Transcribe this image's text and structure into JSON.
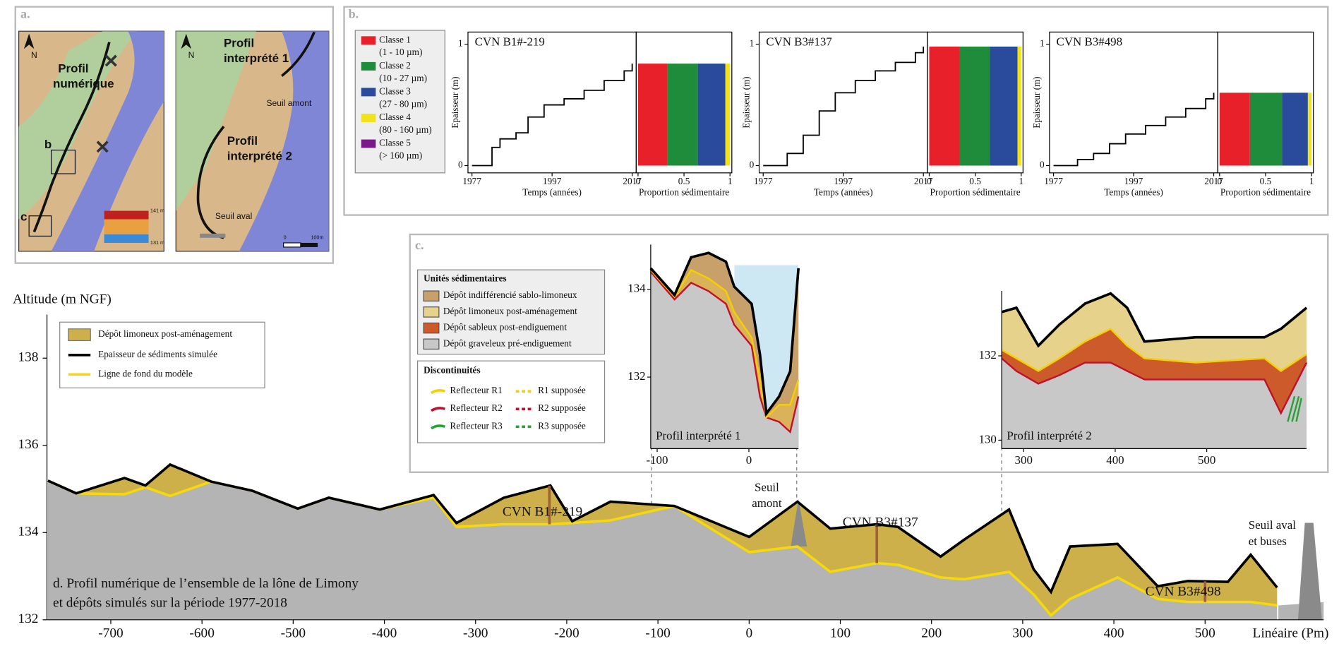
{
  "panel_a": {
    "label": "a.",
    "north": "N",
    "north_2": "N",
    "map1_title": [
      "Profil",
      "numérique"
    ],
    "inset_b": "b",
    "inset_c": "c",
    "elev_max": "141 m",
    "elev_min": "131 m",
    "profil1": [
      "Profil",
      "interprété 1"
    ],
    "profil2": [
      "Profil",
      "interprété 2"
    ],
    "seuil_amont": "Seuil amont",
    "seuil_aval": "Seuil aval",
    "scale_0": "0",
    "scale_1": "100m"
  },
  "panel_b": {
    "label": "b.",
    "legend": [
      {
        "name": "Classe 1",
        "range": "(1 - 10 µm)",
        "color": "#e8202a"
      },
      {
        "name": "Classe 2",
        "range": "(10 - 27 µm)",
        "color": "#1e8c3a"
      },
      {
        "name": "Classe 3",
        "range": "(27 - 80 µm)",
        "color": "#2a4a9c"
      },
      {
        "name": "Classe 4",
        "range": "(80 - 160 µm)",
        "color": "#f2e21a"
      },
      {
        "name": "Classe 5",
        "range": "(> 160 µm)",
        "color": "#7a1a8a"
      }
    ]
  },
  "panel_c": {
    "label": "c.",
    "units_title": "Unités sédimentaires",
    "units": [
      {
        "name": "Dépôt indifférencié sablo-limoneux",
        "color": "#c8a06a"
      },
      {
        "name": "Dépôt limoneux post-aménagement",
        "color": "#e6d28a"
      },
      {
        "name": "Dépôt sableux post-endiguement",
        "color": "#cc5a2a"
      },
      {
        "name": "Dépôt graveleux pré-endiguement",
        "color": "#c8c8c8"
      }
    ],
    "disc_title": "Discontinuités",
    "disc": [
      {
        "name": "Reflecteur R1",
        "supposed": "R1 supposée",
        "color": "#f5d000"
      },
      {
        "name": "Reflecteur R2",
        "supposed": "R2 supposée",
        "color": "#c0102a"
      },
      {
        "name": "Reflecteur R3",
        "supposed": "R3 supposée",
        "color": "#2aa03a"
      }
    ]
  },
  "chart_data": [
    {
      "type": "area",
      "x_label": "Linéaire (Pm)",
      "y_label": "Altitude (m NGF)",
      "caption": [
        "d. Profil numérique de l’ensemble de la lône de Limony",
        "et dépôts simulés sur la période 1977-2018"
      ],
      "x": [
        -769,
        -738,
        -685,
        -662,
        -635,
        -590,
        -545,
        -495,
        -461,
        -405,
        -346,
        -321,
        -269,
        -218,
        -194,
        -152,
        -82,
        0,
        53,
        89,
        140,
        163,
        210,
        236,
        285,
        312,
        331,
        352,
        404,
        448,
        481,
        525,
        550,
        579
      ],
      "series": [
        {
          "name": "Epaisseur de sédiments simulée",
          "color": "#000000",
          "values": [
            135.19,
            134.9,
            135.25,
            135.08,
            135.56,
            135.17,
            134.96,
            134.55,
            134.8,
            134.53,
            134.86,
            134.22,
            134.8,
            135.08,
            134.26,
            134.71,
            134.61,
            133.9,
            134.71,
            134.09,
            134.19,
            134.13,
            133.45,
            133.84,
            134.53,
            133.16,
            132.64,
            133.68,
            133.74,
            132.77,
            132.89,
            132.87,
            133.49,
            132.74
          ]
        },
        {
          "name": "Ligne de fond du modèle",
          "color": "#f5d90a",
          "values": [
            135.19,
            134.9,
            134.88,
            135.04,
            134.84,
            135.17,
            134.96,
            134.55,
            134.8,
            134.53,
            134.8,
            134.13,
            134.19,
            134.19,
            134.22,
            134.28,
            134.61,
            133.55,
            133.68,
            133.1,
            133.3,
            133.26,
            132.97,
            132.93,
            133.1,
            132.58,
            132.1,
            132.48,
            132.97,
            132.48,
            132.41,
            132.41,
            132.41,
            132.33
          ]
        }
      ],
      "fill": {
        "name": "Dépôt limoneux post-aménagement",
        "color": "#cdb04a"
      },
      "ground_color": "#b4b4b4",
      "xlim": [
        -770,
        630
      ],
      "xticks": [
        -700,
        -600,
        -500,
        -400,
        -300,
        -200,
        -100,
        0,
        100,
        200,
        300,
        400,
        500
      ],
      "ylim": [
        132,
        139
      ],
      "yticks": [
        132,
        134,
        136,
        138
      ],
      "annotations": [
        {
          "text": "CVN B1#-219",
          "x": -219
        },
        {
          "text": "CVN B3#137",
          "x": 140
        },
        {
          "text": "CVN B3#498",
          "x": 500
        }
      ],
      "seuil_amont": [
        "Seuil",
        "amont"
      ],
      "seuil_aval": [
        "Seuil aval",
        "et buses"
      ]
    },
    {
      "type": "step",
      "title": "CVN B1#-219",
      "color": "#000000",
      "x": [
        1977,
        1981,
        1982,
        1984,
        1988,
        1991,
        1995,
        2000,
        2005,
        2010,
        2015,
        2017
      ],
      "values": [
        0,
        0,
        0.15,
        0.22,
        0.27,
        0.4,
        0.5,
        0.55,
        0.62,
        0.7,
        0.78,
        0.84
      ],
      "xlim": [
        1976,
        2018
      ],
      "xticks": [
        1977,
        1997,
        2017
      ],
      "ylim": [
        -0.06,
        1.1
      ],
      "yticks": [
        0,
        1
      ],
      "x_label": "Temps (années)",
      "y_label": "Epaisseur (m)",
      "proportion_x_label": "Proportion sédimentaire",
      "proportion_xlim": [
        -0.02,
        1.02
      ],
      "proportion_xticks": [
        0,
        0.5,
        1
      ],
      "proportions": [
        0.32,
        0.33,
        0.3,
        0.05,
        0
      ],
      "proportion_top": 0.84
    },
    {
      "type": "step",
      "title": "CVN B3#137",
      "color": "#000000",
      "x": [
        1977,
        1981,
        1983,
        1987,
        1991,
        1995,
        2000,
        2005,
        2010,
        2015,
        2017
      ],
      "values": [
        0,
        0,
        0.1,
        0.25,
        0.45,
        0.6,
        0.7,
        0.78,
        0.85,
        0.93,
        0.98
      ],
      "xlim": [
        1976,
        2018
      ],
      "xticks": [
        1977,
        1997,
        2017
      ],
      "ylim": [
        -0.06,
        1.1
      ],
      "yticks": [
        0,
        1
      ],
      "x_label": "Temps (années)",
      "y_label": "Epaisseur (m)",
      "proportion_x_label": "Proportion sédimentaire",
      "proportion_xlim": [
        -0.02,
        1.02
      ],
      "proportion_xticks": [
        0,
        0.5,
        1
      ],
      "proportions": [
        0.33,
        0.33,
        0.3,
        0.04,
        0
      ],
      "proportion_top": 0.98
    },
    {
      "type": "step",
      "title": "CVN B3#498",
      "color": "#000000",
      "x": [
        1977,
        1983,
        1987,
        1991,
        1995,
        2000,
        2005,
        2010,
        2015,
        2017
      ],
      "values": [
        0,
        0.05,
        0.1,
        0.18,
        0.26,
        0.33,
        0.4,
        0.47,
        0.55,
        0.6
      ],
      "xlim": [
        1976,
        2018
      ],
      "xticks": [
        1977,
        1997,
        2017
      ],
      "ylim": [
        -0.06,
        1.1
      ],
      "yticks": [
        0,
        1
      ],
      "x_label": "Temps (années)",
      "y_label": "Epaisseur (m)",
      "proportion_x_label": "Proportion sédimentaire",
      "proportion_xlim": [
        -0.02,
        1.02
      ],
      "proportion_xticks": [
        0,
        0.5,
        1
      ],
      "proportions": [
        0.33,
        0.35,
        0.28,
        0.04,
        0
      ],
      "proportion_top": 0.6
    },
    {
      "type": "section",
      "label": "Profil interprété 1",
      "x": [
        -107,
        -81,
        -63,
        -44,
        -25,
        -16,
        3,
        12,
        19,
        33,
        45,
        54
      ],
      "series": [
        {
          "color": "#000000",
          "fill": "#c8a06a",
          "values": [
            134.48,
            133.87,
            134.73,
            134.83,
            134.63,
            134.06,
            133.67,
            132.52,
            131.17,
            131.56,
            132.13,
            134.48
          ]
        },
        {
          "color": "#f5d000",
          "fill": "#d9b25a",
          "values": [
            134.44,
            133.83,
            134.44,
            134.25,
            133.96,
            133.48,
            132.9,
            131.94,
            131.08,
            131.37,
            131.37,
            131.94
          ]
        },
        {
          "color": "#c0102a",
          "fill": "#c8c8c8",
          "values": [
            134.4,
            133.77,
            134.15,
            133.96,
            133.67,
            133.19,
            132.71,
            131.56,
            131.08,
            130.98,
            130.75,
            131.56
          ]
        }
      ],
      "xlim": [
        -107,
        54
      ],
      "xticks": [
        -100,
        0
      ],
      "ylim": [
        130.37,
        135.02
      ],
      "yticks": [
        132,
        134
      ],
      "water_level": 134.55,
      "water_color": "#cde8f2"
    },
    {
      "type": "section",
      "label": "Profil interprété 2",
      "x": [
        276,
        292,
        316,
        339,
        367,
        395,
        413,
        432,
        488,
        563,
        581,
        609
      ],
      "series": [
        {
          "color": "#000000",
          "fill": "#e6d28a",
          "values": [
            133.04,
            133.14,
            132.24,
            132.74,
            133.24,
            133.48,
            133.14,
            132.34,
            132.44,
            132.44,
            132.64,
            133.14
          ]
        },
        {
          "color": "#f5d000",
          "fill": "#cc5a2a",
          "values": [
            132.14,
            131.94,
            131.64,
            131.94,
            132.34,
            132.64,
            132.24,
            131.94,
            131.84,
            131.94,
            131.64,
            132.04
          ]
        },
        {
          "color": "#c0102a",
          "fill": "#c8c8c8",
          "values": [
            131.94,
            131.64,
            131.34,
            131.54,
            131.84,
            131.84,
            131.64,
            131.44,
            131.44,
            131.44,
            130.64,
            131.84
          ]
        }
      ],
      "xlim": [
        276,
        609
      ],
      "xticks": [
        300,
        400,
        500
      ],
      "ylim": [
        129.8,
        133.54
      ],
      "yticks": [
        130,
        132
      ]
    }
  ]
}
